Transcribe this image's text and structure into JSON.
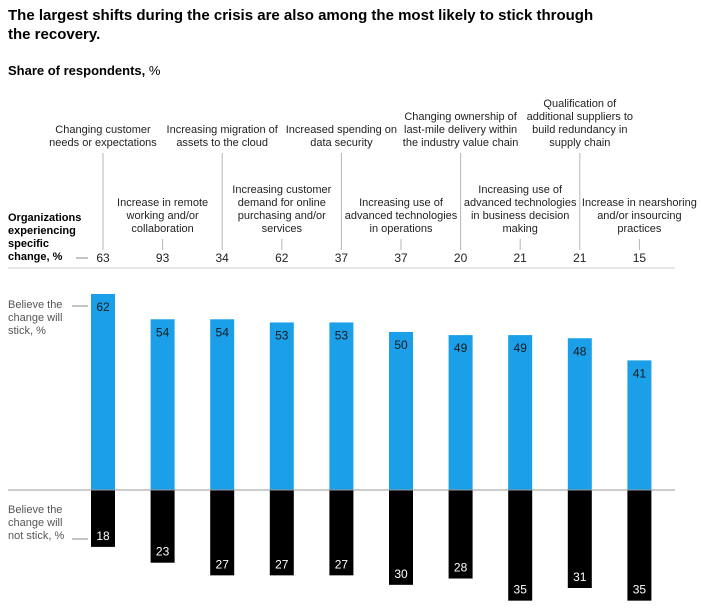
{
  "title": "The largest shifts during the crisis are also among the most likely to stick through the recovery.",
  "subtitle": "Share of respondents,",
  "subtitle_unit": "%",
  "row_labels": {
    "organizations": "Organizations experiencing specific change, %",
    "stick": "Believe the change will stick, %",
    "not_stick": "Believe the change will not stick, %"
  },
  "colors": {
    "stick": "#1a9fe8",
    "not_stick": "#000000",
    "stick_label": "#1a1a1a",
    "not_stick_label": "#ffffff"
  },
  "chart_data": {
    "type": "bar",
    "categories": [
      "Changing customer needs or expectations",
      "Increase in remote working and/or collaboration",
      "Increasing migration of assets to the cloud",
      "Increasing customer demand for online purchasing and/or services",
      "Increased spending on data security",
      "Increasing use of advanced technologies in operations",
      "Changing ownership of last-mile delivery within the industry value chain",
      "Increasing use of advanced technologies in business decision making",
      "Qualification of additional suppliers to build redundancy in supply chain",
      "Increase in nearshoring and/or insourcing practices"
    ],
    "organizations_experiencing": [
      63,
      93,
      34,
      62,
      37,
      37,
      20,
      21,
      21,
      15
    ],
    "series": [
      {
        "name": "Believe the change will stick, %",
        "values": [
          62,
          54,
          54,
          53,
          53,
          50,
          49,
          49,
          48,
          41
        ]
      },
      {
        "name": "Believe the change will not stick, %",
        "values": [
          18,
          23,
          27,
          27,
          27,
          30,
          28,
          35,
          31,
          35
        ]
      }
    ],
    "ylim": [
      0,
      62
    ]
  }
}
